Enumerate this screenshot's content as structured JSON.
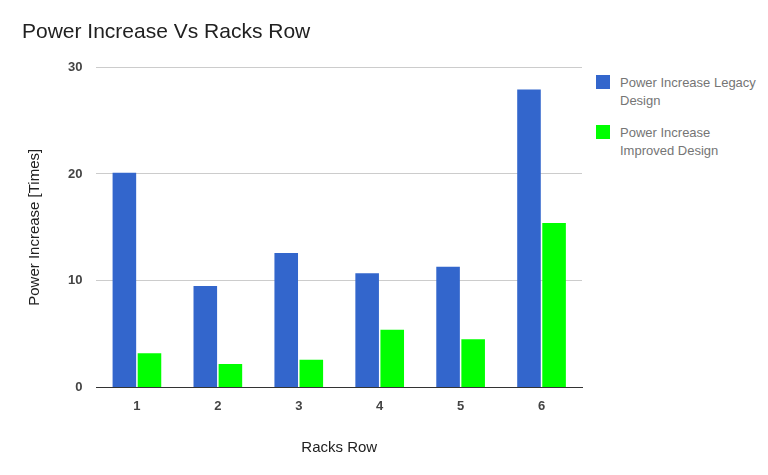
{
  "chart_data": {
    "type": "bar",
    "title": "Power Increase Vs Racks Row",
    "x_label": "Racks Row",
    "y_label": "Power Increase [Times]",
    "categories": [
      "1",
      "2",
      "3",
      "4",
      "5",
      "6"
    ],
    "series": [
      {
        "name": "Power Increase Legacy Design",
        "color": "#3366cc",
        "values": [
          20.1,
          9.5,
          12.6,
          10.7,
          11.3,
          27.9
        ]
      },
      {
        "name": "Power Increase Improved Design",
        "color": "#00ff00",
        "values": [
          3.2,
          2.2,
          2.6,
          5.4,
          4.5,
          15.4
        ]
      }
    ],
    "ylim": [
      0,
      30
    ],
    "yticks": [
      0,
      10,
      20,
      30
    ],
    "grid": true,
    "legend": "right"
  }
}
